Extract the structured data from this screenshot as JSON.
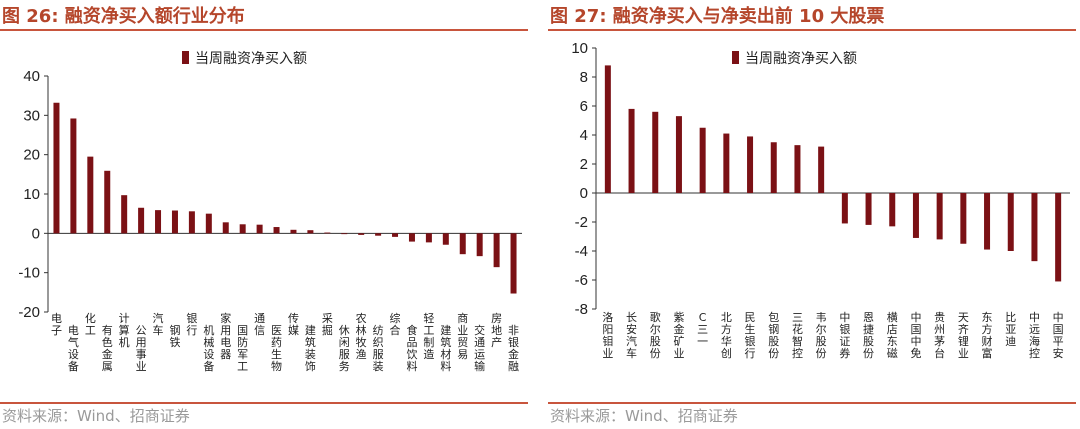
{
  "colors": {
    "bar": "#7b1115",
    "accent": "#b5462b",
    "rule": "#c8553d",
    "source": "#9a9a9a"
  },
  "chart_data": [
    {
      "type": "bar",
      "title": "图 26: 融资净买入额行业分布",
      "legend": "当周融资净买入额",
      "source": "资料来源：Wind、招商证券",
      "ylim": [
        -20,
        40
      ],
      "yticks": [
        40,
        30,
        20,
        10,
        0,
        -10,
        -20
      ],
      "categories": [
        "电子",
        "电气设备",
        "化工",
        "有色金属",
        "计算机",
        "公用事业",
        "汽车",
        "钢铁",
        "银行",
        "机械设备",
        "家用电器",
        "国防军工",
        "通信",
        "医药生物",
        "传媒",
        "建筑装饰",
        "采掘",
        "休闲服务",
        "农林牧渔",
        "纺织服装",
        "综合",
        "食品饮料",
        "轻工制造",
        "建筑材料",
        "商业贸易",
        "交通运输",
        "房地产",
        "非银金融"
      ],
      "values": [
        33.2,
        29.2,
        19.5,
        15.9,
        9.7,
        6.5,
        5.9,
        5.8,
        5.6,
        5.0,
        2.8,
        2.3,
        2.2,
        1.6,
        0.9,
        0.8,
        0.1,
        -0.1,
        -0.4,
        -0.6,
        -0.9,
        -2.1,
        -2.3,
        -2.9,
        -5.3,
        -5.8,
        -8.6,
        -15.3
      ]
    },
    {
      "type": "bar",
      "title": "图 27: 融资净买入与净卖出前 10 大股票",
      "legend": "当周融资净买入额",
      "source": "资料来源：Wind、招商证券",
      "ylim": [
        -8,
        10
      ],
      "yticks": [
        10,
        8,
        6,
        4,
        2,
        0,
        -2,
        -4,
        -6,
        -8
      ],
      "categories": [
        "洛阳钼业",
        "长安汽车",
        "歌尔股份",
        "紫金矿业",
        "C三一",
        "北方华创",
        "民生银行",
        "包钢股份",
        "三花智控",
        "韦尔股份",
        "中银证券",
        "恩捷股份",
        "横店东磁",
        "中国中免",
        "贵州茅台",
        "天齐锂业",
        "东方财富",
        "比亚迪",
        "中远海控",
        "中国平安"
      ],
      "values": [
        8.8,
        5.8,
        5.6,
        5.3,
        4.5,
        4.1,
        3.9,
        3.5,
        3.3,
        3.2,
        -2.1,
        -2.2,
        -2.3,
        -3.1,
        -3.2,
        -3.5,
        -3.9,
        -4.0,
        -4.7,
        -6.1
      ]
    }
  ]
}
